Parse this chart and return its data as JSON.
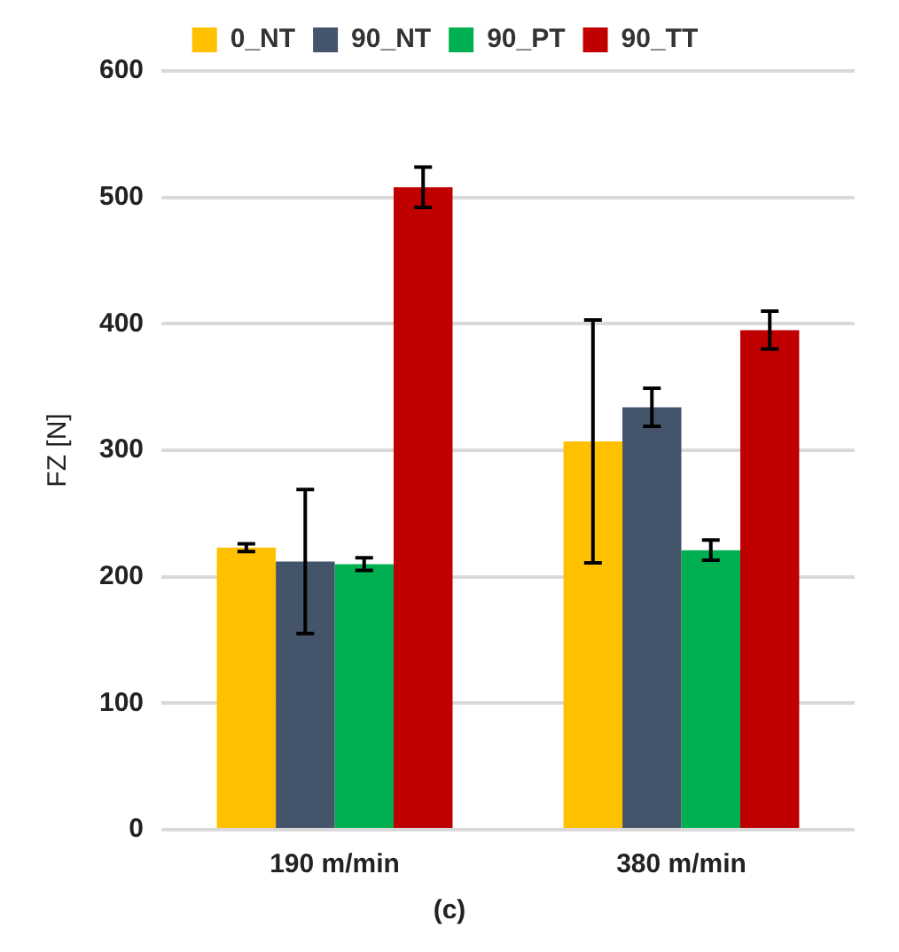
{
  "chart_data": {
    "type": "bar",
    "ylabel": "FZ [N]",
    "categories": [
      "190 m/min",
      "380 m/min"
    ],
    "series": [
      {
        "name": "0_NT",
        "color": "#ffc000",
        "values": [
          223,
          307
        ],
        "errors": [
          3,
          96
        ]
      },
      {
        "name": "90_NT",
        "color": "#44546a",
        "values": [
          212,
          334
        ],
        "errors": [
          57,
          15
        ]
      },
      {
        "name": "90_PT",
        "color": "#00b050",
        "values": [
          210,
          221
        ],
        "errors": [
          5,
          8
        ]
      },
      {
        "name": "90_TT",
        "color": "#c00000",
        "values": [
          508,
          395
        ],
        "errors": [
          16,
          15
        ]
      }
    ],
    "ylim": [
      0,
      600
    ],
    "yticks": [
      0,
      100,
      200,
      300,
      400,
      500,
      600
    ],
    "grid": "y",
    "legend": "top",
    "annotations": [
      "(c)"
    ]
  }
}
